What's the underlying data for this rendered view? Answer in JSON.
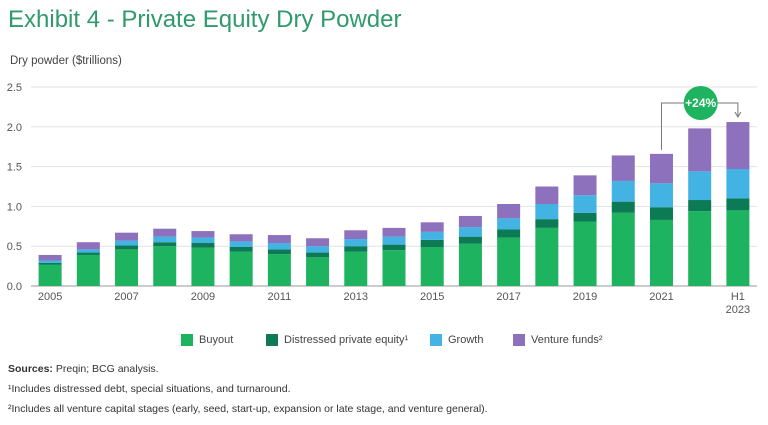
{
  "title": "Exhibit 4 - Private Equity Dry Powder",
  "chart_data": {
    "type": "bar",
    "stacked": true,
    "ylabel": "Dry powder ($trillions)",
    "ylim": [
      0,
      2.5
    ],
    "yticks": [
      "0.0",
      "0.5",
      "1.0",
      "1.5",
      "2.0",
      "2.5"
    ],
    "grid": "horizontal",
    "categories": [
      "2005",
      "2006",
      "2007",
      "2008",
      "2009",
      "2010",
      "2011",
      "2012",
      "2013",
      "2014",
      "2015",
      "2016",
      "2017",
      "2018",
      "2019",
      "2020",
      "2021",
      "2022",
      "H1 2023"
    ],
    "xtick_labels": [
      "2005",
      "",
      "2007",
      "",
      "2009",
      "",
      "2011",
      "",
      "2013",
      "",
      "2015",
      "",
      "2017",
      "",
      "2019",
      "",
      "2021",
      "",
      "H1\n2023"
    ],
    "series": [
      {
        "name": "Buyout",
        "color": "#1db35f",
        "values": [
          0.27,
          0.39,
          0.46,
          0.5,
          0.48,
          0.43,
          0.4,
          0.36,
          0.43,
          0.45,
          0.49,
          0.53,
          0.61,
          0.73,
          0.81,
          0.92,
          0.83,
          0.94,
          0.95
        ]
      },
      {
        "name": "Distressed private equity¹",
        "color": "#0b7a55",
        "values": [
          0.02,
          0.03,
          0.05,
          0.05,
          0.06,
          0.06,
          0.06,
          0.06,
          0.07,
          0.07,
          0.09,
          0.09,
          0.1,
          0.11,
          0.11,
          0.14,
          0.16,
          0.14,
          0.15
        ]
      },
      {
        "name": "Growth",
        "color": "#43b3e3",
        "values": [
          0.03,
          0.04,
          0.06,
          0.07,
          0.07,
          0.07,
          0.08,
          0.08,
          0.09,
          0.1,
          0.1,
          0.12,
          0.14,
          0.19,
          0.22,
          0.26,
          0.3,
          0.36,
          0.37
        ]
      },
      {
        "name": "Venture funds²",
        "color": "#8d71bd",
        "values": [
          0.07,
          0.09,
          0.1,
          0.1,
          0.08,
          0.09,
          0.1,
          0.1,
          0.11,
          0.11,
          0.12,
          0.14,
          0.18,
          0.22,
          0.25,
          0.32,
          0.37,
          0.54,
          0.59
        ]
      }
    ],
    "annotation": {
      "text": "+24%",
      "from": "2021",
      "to": "H1 2023"
    }
  },
  "footnotes": {
    "sources_label": "Sources:",
    "sources_text": " Preqin; BCG analysis.",
    "note1": "¹Includes distressed debt, special situations, and turnaround.",
    "note2": "²Includes all venture capital stages (early, seed, start-up, expansion or late stage, and venture general)."
  }
}
